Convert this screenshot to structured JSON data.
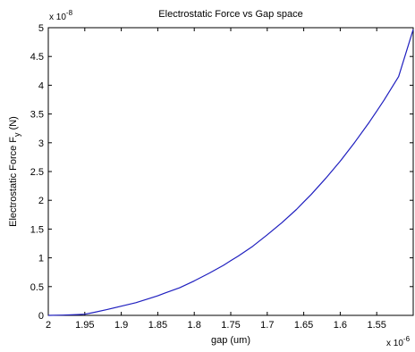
{
  "chart_data": {
    "type": "line",
    "title": "Electrostatic Force vs Gap space",
    "xlabel": "gap (um)",
    "ylabel_main": "Electrostatic Force F",
    "ylabel_sub": "y",
    "ylabel_unit": " (N)",
    "y_multiplier": {
      "base": "x 10",
      "exp": "-8"
    },
    "x_multiplier": {
      "base": "x 10",
      "exp": "-6"
    },
    "x_reversed": true,
    "xlim": [
      1.5,
      2.0
    ],
    "ylim": [
      0,
      5
    ],
    "grid": false,
    "x_ticks": [
      2.0,
      1.95,
      1.9,
      1.85,
      1.8,
      1.75,
      1.7,
      1.65,
      1.6,
      1.55
    ],
    "x_tick_labels": [
      "2",
      "1.95",
      "1.9",
      "1.85",
      "1.8",
      "1.75",
      "1.7",
      "1.65",
      "1.6",
      "1.55"
    ],
    "y_ticks": [
      0,
      0.5,
      1,
      1.5,
      2,
      2.5,
      3,
      3.5,
      4,
      4.5,
      5
    ],
    "y_tick_labels": [
      "0",
      "0.5",
      "1",
      "1.5",
      "2",
      "2.5",
      "3",
      "3.5",
      "4",
      "4.5",
      "5"
    ],
    "series": [
      {
        "color": "#1f1fbf",
        "x": [
          2.0,
          1.98,
          1.96,
          1.95,
          1.94,
          1.92,
          1.9,
          1.88,
          1.86,
          1.85,
          1.84,
          1.82,
          1.8,
          1.78,
          1.76,
          1.75,
          1.74,
          1.72,
          1.7,
          1.68,
          1.66,
          1.65,
          1.64,
          1.62,
          1.6,
          1.58,
          1.56,
          1.55,
          1.54,
          1.52,
          1.5
        ],
        "y": [
          0.0,
          0.004,
          0.014,
          0.02,
          0.045,
          0.1,
          0.16,
          0.22,
          0.3,
          0.34,
          0.39,
          0.48,
          0.6,
          0.73,
          0.87,
          0.95,
          1.03,
          1.2,
          1.4,
          1.61,
          1.84,
          1.97,
          2.1,
          2.38,
          2.68,
          3.01,
          3.36,
          3.55,
          3.74,
          4.15,
          4.97
        ]
      }
    ]
  }
}
